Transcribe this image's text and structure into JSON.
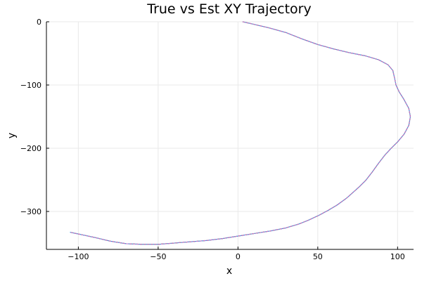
{
  "chart_data": {
    "type": "line",
    "title": "True vs Est XY Trajectory",
    "xlabel": "x",
    "ylabel": "y",
    "xlim": [
      -120,
      110
    ],
    "ylim": [
      -360,
      0
    ],
    "xticks": [
      -100,
      -50,
      0,
      50,
      100
    ],
    "yticks": [
      0,
      -100,
      -200,
      -300
    ],
    "grid": true,
    "legend": "none",
    "series": [
      {
        "color": "#009af9",
        "x": [
          3,
          10,
          20,
          30,
          40,
          50,
          60,
          70,
          80,
          88,
          94,
          97,
          98,
          99,
          101,
          104,
          107,
          108,
          107,
          104,
          100,
          96,
          92,
          88,
          84,
          80,
          76,
          72,
          68,
          62,
          56,
          50,
          44,
          38,
          30,
          20,
          10,
          0,
          -10,
          -20,
          -30,
          -40,
          -50,
          -60,
          -70,
          -80,
          -90,
          -105
        ],
        "y": [
          0,
          -4,
          -10,
          -17,
          -27,
          -36,
          -43,
          -49,
          -54,
          -60,
          -68,
          -77,
          -88,
          -100,
          -111,
          -123,
          -137,
          -150,
          -164,
          -178,
          -190,
          -200,
          -211,
          -224,
          -238,
          -251,
          -261,
          -270,
          -279,
          -290,
          -299,
          -307,
          -314,
          -320,
          -326,
          -331,
          -335,
          -339,
          -343,
          -346,
          -348,
          -350,
          -352,
          -352,
          -351,
          -347,
          -341,
          -333
        ]
      },
      {
        "color": "#e26f46",
        "x": [
          3,
          10,
          20,
          30,
          40,
          50,
          60,
          70,
          80,
          88,
          94,
          97,
          98,
          99,
          101,
          104,
          107,
          108,
          107,
          104,
          100,
          96,
          92,
          88,
          84,
          80,
          76,
          72,
          68,
          62,
          56,
          50,
          44,
          38,
          30,
          20,
          10,
          0,
          -10,
          -20,
          -30,
          -40,
          -50,
          -60,
          -70,
          -80,
          -90,
          -105
        ],
        "y": [
          0,
          -4,
          -10,
          -17,
          -27,
          -36,
          -43,
          -49,
          -54,
          -60,
          -68,
          -77,
          -88,
          -100,
          -111,
          -123,
          -137,
          -150,
          -164,
          -178,
          -190,
          -200,
          -211,
          -224,
          -238,
          -251,
          -261,
          -270,
          -279,
          -290,
          -299,
          -307,
          -314,
          -320,
          -326,
          -331,
          -335,
          -339,
          -343,
          -346,
          -348,
          -350,
          -352,
          -352,
          -351,
          -347,
          -341,
          -333
        ]
      },
      {
        "color": "#3da44d",
        "x": [
          3,
          10,
          20,
          30,
          40,
          50,
          60,
          70,
          80,
          88,
          94,
          97,
          98,
          99,
          101,
          104,
          107,
          108,
          107,
          104,
          100,
          96,
          92,
          88,
          84,
          80,
          76,
          72,
          68,
          62,
          56,
          50,
          44,
          38,
          30,
          20,
          10,
          0,
          -10,
          -20,
          -30,
          -40,
          -50,
          -60,
          -70,
          -80,
          -90,
          -105
        ],
        "y": [
          0,
          -4,
          -10,
          -17,
          -27,
          -36,
          -43,
          -49,
          -54,
          -60,
          -68,
          -77,
          -88,
          -100,
          -111,
          -123,
          -137,
          -150,
          -164,
          -178,
          -190,
          -200,
          -211,
          -224,
          -238,
          -251,
          -261,
          -270,
          -279,
          -290,
          -299,
          -307,
          -314,
          -320,
          -326,
          -331,
          -335,
          -339,
          -343,
          -346,
          -348,
          -350,
          -352,
          -352,
          -351,
          -347,
          -341,
          -333
        ]
      },
      {
        "color": "#c271d2",
        "x": [
          3,
          10,
          20,
          30,
          40,
          50,
          60,
          70,
          80,
          88,
          94,
          97,
          98,
          99,
          101,
          104,
          107,
          108,
          107,
          104,
          100,
          96,
          92,
          88,
          84,
          80,
          76,
          72,
          68,
          62,
          56,
          50,
          44,
          38,
          30,
          20,
          10,
          0,
          -10,
          -20,
          -30,
          -40,
          -50,
          -60,
          -70,
          -80,
          -90,
          -105
        ],
        "y": [
          0,
          -4,
          -10,
          -17,
          -27,
          -36,
          -43,
          -49,
          -54,
          -60,
          -68,
          -77,
          -88,
          -100,
          -111,
          -123,
          -137,
          -150,
          -164,
          -178,
          -190,
          -200,
          -211,
          -224,
          -238,
          -251,
          -261,
          -270,
          -279,
          -290,
          -299,
          -307,
          -314,
          -320,
          -326,
          -331,
          -335,
          -339,
          -343,
          -346,
          -348,
          -350,
          -352,
          -352,
          -351,
          -347,
          -341,
          -333
        ]
      }
    ]
  }
}
